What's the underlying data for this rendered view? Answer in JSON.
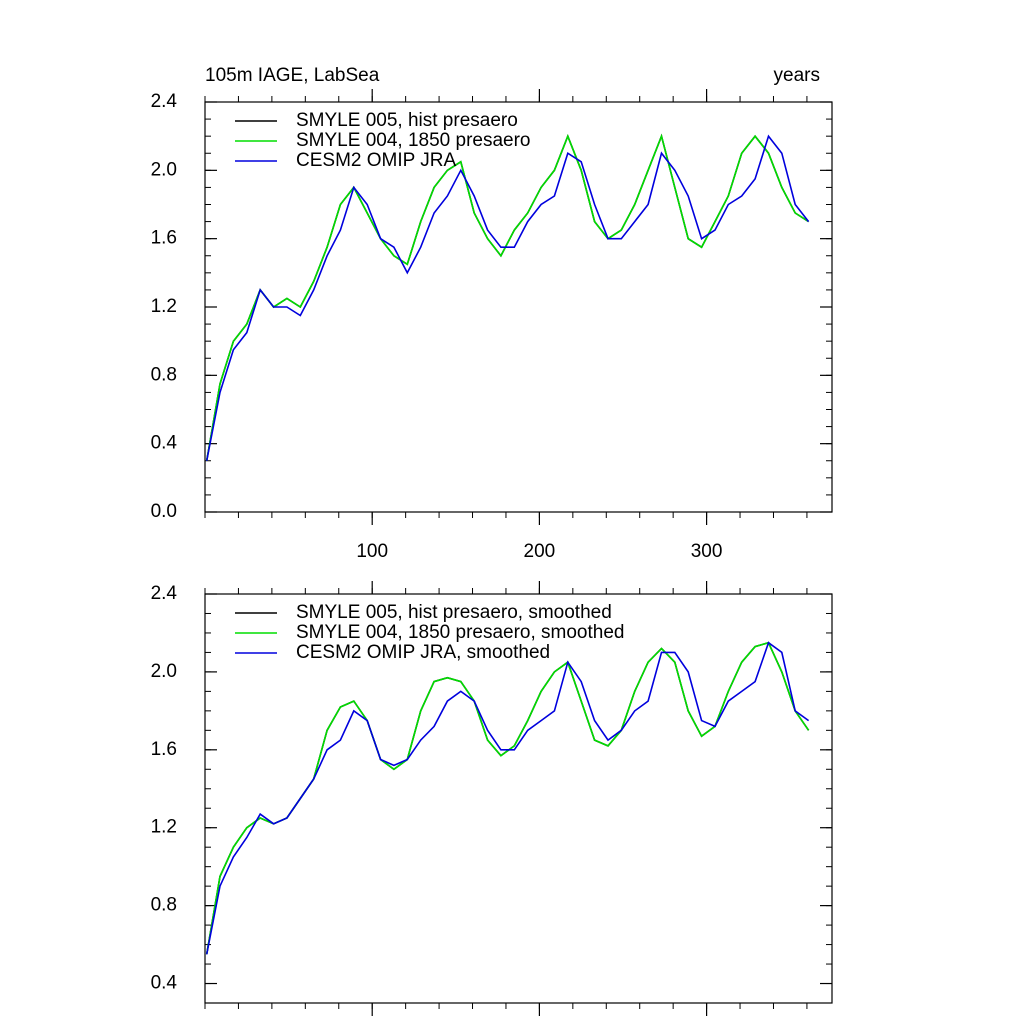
{
  "chart_data": [
    {
      "type": "line",
      "title": "105m IAGE, LabSea",
      "right_title": "years",
      "x": [
        1,
        9,
        17,
        25,
        33,
        41,
        49,
        57,
        65,
        73,
        81,
        89,
        97,
        105,
        113,
        121,
        129,
        137,
        145,
        153,
        161,
        169,
        177,
        185,
        193,
        201,
        209,
        217,
        225,
        233,
        241,
        249,
        257,
        265,
        273,
        281,
        289,
        297,
        305,
        313,
        321,
        329,
        337,
        345,
        353,
        361
      ],
      "xlim": [
        0,
        375
      ],
      "xticks": [
        100,
        200,
        300
      ],
      "ylim": [
        0,
        2.4
      ],
      "yticks": [
        {
          "value": 0,
          "label": "0.0"
        },
        0.4,
        0.8,
        1.2,
        1.6,
        {
          "value": 2,
          "label": "2.0"
        },
        2.4
      ],
      "series": [
        {
          "name": "SMYLE 005, hist presaero",
          "color": "#000000",
          "values": [
            0.3,
            0.75,
            1.0,
            1.1,
            1.3,
            1.2,
            1.25,
            1.2,
            1.35,
            1.55,
            1.8,
            1.9,
            1.75,
            1.6,
            1.5,
            1.45,
            1.7,
            1.9,
            2.0,
            2.05,
            1.75,
            1.6,
            1.5,
            1.65,
            1.75,
            1.9,
            2.0,
            2.2,
            2.0,
            1.7,
            1.6,
            1.65,
            1.8,
            2.0,
            2.2,
            1.9,
            1.6,
            1.55,
            1.7,
            1.85,
            2.1,
            2.2,
            2.1,
            1.9,
            1.75,
            1.7
          ]
        },
        {
          "name": "SMYLE 004, 1850 presaero",
          "color": "#00dd00",
          "values": [
            0.3,
            0.75,
            1.0,
            1.1,
            1.3,
            1.2,
            1.25,
            1.2,
            1.35,
            1.55,
            1.8,
            1.9,
            1.75,
            1.6,
            1.5,
            1.45,
            1.7,
            1.9,
            2.0,
            2.05,
            1.75,
            1.6,
            1.5,
            1.65,
            1.75,
            1.9,
            2.0,
            2.2,
            2.0,
            1.7,
            1.6,
            1.65,
            1.8,
            2.0,
            2.2,
            1.9,
            1.6,
            1.55,
            1.7,
            1.85,
            2.1,
            2.2,
            2.1,
            1.9,
            1.75,
            1.7
          ]
        },
        {
          "name": "CESM2 OMIP JRA",
          "color": "#0000dd",
          "values": [
            0.3,
            0.7,
            0.95,
            1.05,
            1.3,
            1.2,
            1.2,
            1.15,
            1.3,
            1.5,
            1.65,
            1.9,
            1.8,
            1.6,
            1.55,
            1.4,
            1.55,
            1.75,
            1.85,
            2.0,
            1.85,
            1.65,
            1.55,
            1.55,
            1.7,
            1.8,
            1.85,
            2.1,
            2.05,
            1.8,
            1.6,
            1.6,
            1.7,
            1.8,
            2.1,
            2.0,
            1.85,
            1.6,
            1.65,
            1.8,
            1.85,
            1.95,
            2.2,
            2.1,
            1.8,
            1.7
          ]
        }
      ]
    },
    {
      "type": "line",
      "x": [
        1,
        9,
        17,
        25,
        33,
        41,
        49,
        57,
        65,
        73,
        81,
        89,
        97,
        105,
        113,
        121,
        129,
        137,
        145,
        153,
        161,
        169,
        177,
        185,
        193,
        201,
        209,
        217,
        225,
        233,
        241,
        249,
        257,
        265,
        273,
        281,
        289,
        297,
        305,
        313,
        321,
        329,
        337,
        345,
        353,
        361
      ],
      "xlim": [
        0,
        375
      ],
      "xticks": [
        100,
        200,
        300
      ],
      "ylim": [
        0.3,
        2.4
      ],
      "yticks": [
        0.4,
        0.8,
        1.2,
        1.6,
        {
          "value": 2,
          "label": "2.0"
        },
        2.4
      ],
      "series": [
        {
          "name": "SMYLE 005, hist presaero, smoothed",
          "color": "#000000",
          "values": [
            0.55,
            0.95,
            1.1,
            1.2,
            1.25,
            1.22,
            1.25,
            1.35,
            1.45,
            1.7,
            1.82,
            1.85,
            1.75,
            1.55,
            1.5,
            1.55,
            1.8,
            1.95,
            1.97,
            1.95,
            1.85,
            1.65,
            1.57,
            1.62,
            1.75,
            1.9,
            2.0,
            2.05,
            1.85,
            1.65,
            1.62,
            1.7,
            1.9,
            2.05,
            2.12,
            2.05,
            1.8,
            1.67,
            1.72,
            1.9,
            2.05,
            2.13,
            2.15,
            2.0,
            1.8,
            1.7
          ]
        },
        {
          "name": "SMYLE 004, 1850 presaero, smoothed",
          "color": "#00dd00",
          "values": [
            0.55,
            0.95,
            1.1,
            1.2,
            1.25,
            1.22,
            1.25,
            1.35,
            1.45,
            1.7,
            1.82,
            1.85,
            1.75,
            1.55,
            1.5,
            1.55,
            1.8,
            1.95,
            1.97,
            1.95,
            1.85,
            1.65,
            1.57,
            1.62,
            1.75,
            1.9,
            2.0,
            2.05,
            1.85,
            1.65,
            1.62,
            1.7,
            1.9,
            2.05,
            2.12,
            2.05,
            1.8,
            1.67,
            1.72,
            1.9,
            2.05,
            2.13,
            2.15,
            2.0,
            1.8,
            1.7
          ]
        },
        {
          "name": "CESM2 OMIP JRA, smoothed",
          "color": "#0000dd",
          "values": [
            0.55,
            0.9,
            1.05,
            1.15,
            1.27,
            1.22,
            1.25,
            1.35,
            1.45,
            1.6,
            1.65,
            1.8,
            1.75,
            1.55,
            1.52,
            1.55,
            1.65,
            1.72,
            1.85,
            1.9,
            1.85,
            1.7,
            1.6,
            1.6,
            1.7,
            1.75,
            1.8,
            2.05,
            1.95,
            1.75,
            1.65,
            1.7,
            1.8,
            1.85,
            2.1,
            2.1,
            2.0,
            1.75,
            1.72,
            1.85,
            1.9,
            1.95,
            2.15,
            2.1,
            1.8,
            1.75
          ]
        }
      ]
    }
  ]
}
